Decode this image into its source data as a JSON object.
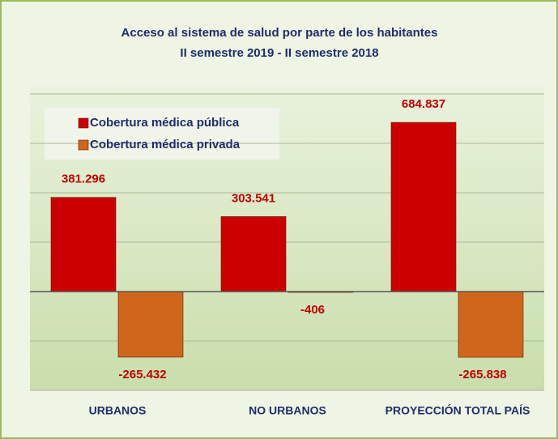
{
  "chart_data": {
    "type": "bar",
    "title": "Acceso al sistema de salud por parte de los habitantes",
    "subtitle": "II semestre 2019 - II semestre 2018",
    "categories": [
      "URBANOS",
      "NO URBANOS",
      "PROYECCIÓN TOTAL PAÍS"
    ],
    "series": [
      {
        "name": "Cobertura médica pública",
        "color": "#cc0000",
        "values": [
          381296,
          303541,
          684837
        ],
        "value_labels": [
          "381.296",
          "303.541",
          "684.837"
        ]
      },
      {
        "name": "Cobertura médica privada",
        "color": "#d0661c",
        "values": [
          -265432,
          -406,
          -265838
        ],
        "value_labels": [
          "-265.432",
          "-406",
          "-265.838"
        ]
      }
    ],
    "ylim": [
      -400000,
      800000
    ],
    "yticks": [
      -400000,
      -200000,
      0,
      200000,
      400000,
      600000,
      800000
    ],
    "grid": true,
    "legend": "top-left"
  }
}
